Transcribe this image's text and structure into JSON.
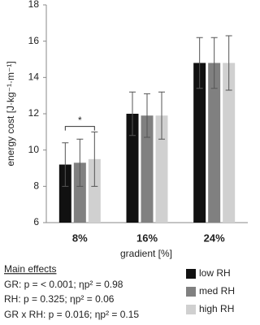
{
  "chart_data": {
    "type": "bar",
    "y_label": "energy cost [J·kg⁻¹·m⁻¹]",
    "x_label": "gradient [%]",
    "categories": [
      "8%",
      "16%",
      "24%"
    ],
    "series": [
      {
        "name": "low RH",
        "color": "#111111",
        "values": [
          9.2,
          12.0,
          14.8
        ],
        "errors": [
          1.2,
          1.2,
          1.4
        ]
      },
      {
        "name": "med RH",
        "color": "#808080",
        "values": [
          9.3,
          11.9,
          14.8
        ],
        "errors": [
          1.3,
          1.2,
          1.4
        ]
      },
      {
        "name": "high RH",
        "color": "#d0d0d0",
        "values": [
          9.5,
          11.9,
          14.8
        ],
        "errors": [
          1.5,
          1.3,
          1.5
        ]
      }
    ],
    "ylim": [
      6,
      18
    ],
    "yticks": [
      6,
      8,
      10,
      12,
      14,
      16,
      18
    ],
    "annotations": [
      {
        "text": "*",
        "y": 11.3
      }
    ],
    "notes": {
      "heading": "Main effects",
      "lines": [
        "GR: p = < 0.001; ηp² = 0.98",
        "RH: p = 0.325; ηp² = 0.06",
        "GR x RH: p = 0.016; ηp² = 0.15"
      ]
    }
  }
}
